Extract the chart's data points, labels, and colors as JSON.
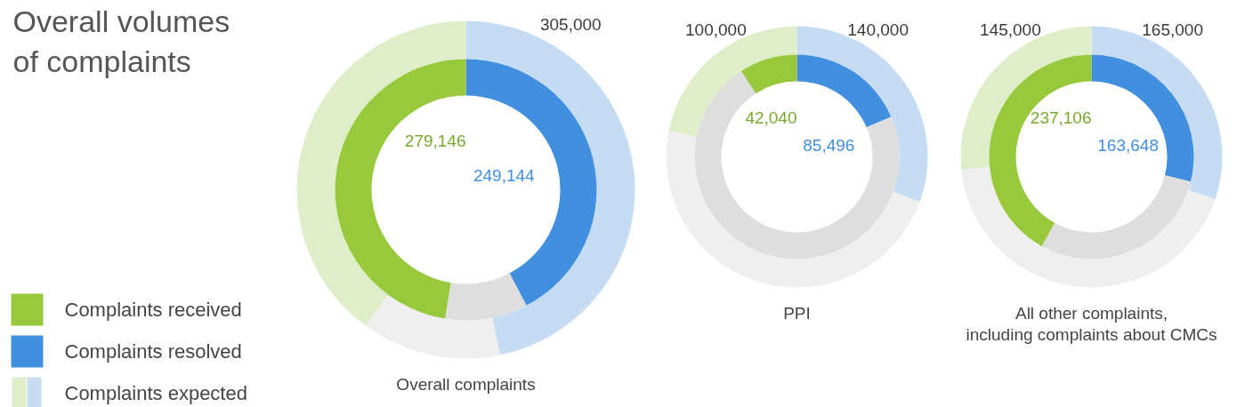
{
  "chart_data": [
    {
      "type": "donut",
      "title": "Overall volumes of complaints",
      "xlabel": "Overall complaints",
      "legend": "bottom left",
      "categories": [
        "Complaints resolved",
        null,
        "Complaints received"
      ],
      "series": [
        {
          "name": "Complaints expected",
          "colors": [
            "#c6dcf3",
            "#efefef",
            "#dfeec9"
          ],
          "values": [
            305000,
            87000,
            260000
          ],
          "value_labels": [
            "305,000",
            null,
            null
          ]
        },
        {
          "colors": [
            "#418fdf",
            "#dedede",
            "#98c93c"
          ],
          "values": [
            249144,
            60000,
            279146
          ],
          "value_labels": [
            "249,144",
            null,
            "279,146"
          ]
        }
      ]
    },
    {
      "type": "donut",
      "xlabel": "PPI",
      "categories": [
        null,
        null,
        null
      ],
      "series": [
        {
          "colors": [
            "#c6dcf3",
            "#efefef",
            "#dfeec9"
          ],
          "values": [
            140000,
            218000,
            100000
          ],
          "value_labels": [
            "140,000",
            null,
            "100,000"
          ]
        },
        {
          "colors": [
            "#418fdf",
            "#dedede",
            "#98c93c"
          ],
          "values": [
            85496,
            332000,
            42040
          ],
          "value_labels": [
            "85,496",
            null,
            "42,040"
          ]
        }
      ]
    },
    {
      "type": "donut",
      "xlabel": "All other complaints,\nincluding complaints about CMCs",
      "categories": [
        null,
        null,
        null
      ],
      "series": [
        {
          "colors": [
            "#c6dcf3",
            "#efefef",
            "#dfeec9"
          ],
          "values": [
            165000,
            235000,
            145000
          ],
          "value_labels": [
            "165,000",
            null,
            "145,000"
          ]
        },
        {
          "colors": [
            "#418fdf",
            "#dedede",
            "#98c93c"
          ],
          "values": [
            163648,
            165000,
            237106
          ],
          "value_labels": [
            "163,648",
            null,
            "237,106"
          ]
        }
      ]
    }
  ]
}
